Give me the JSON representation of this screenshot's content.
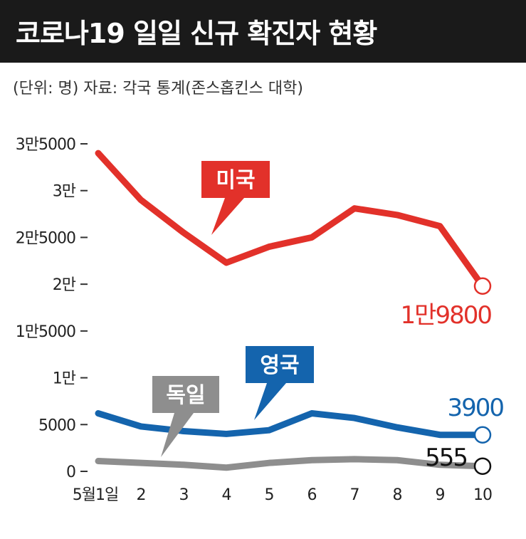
{
  "title": "코로나19 일일 신규 확진자 현황",
  "source": "(단위: 명) 자료: 각국 통계(존스홉킨스 대학)",
  "colors": {
    "title_bg": "#1a1a1a",
    "usa": "#e2312a",
    "uk": "#1464ad",
    "germany": "#8e8e8e"
  },
  "chart_data": {
    "type": "line",
    "x": [
      "5월1일",
      "2",
      "3",
      "4",
      "5",
      "6",
      "7",
      "8",
      "9",
      "10"
    ],
    "yticks": [
      {
        "value": 0,
        "label": "0"
      },
      {
        "value": 5000,
        "label": "5000"
      },
      {
        "value": 10000,
        "label": "1만"
      },
      {
        "value": 15000,
        "label": "1만5000"
      },
      {
        "value": 20000,
        "label": "2만"
      },
      {
        "value": 25000,
        "label": "2만5000"
      },
      {
        "value": 30000,
        "label": "3만"
      },
      {
        "value": 35000,
        "label": "3만5000"
      }
    ],
    "ylim": [
      0,
      35000
    ],
    "series": [
      {
        "name": "미국",
        "key": "usa",
        "values": [
          34000,
          29000,
          25500,
          22300,
          24000,
          25000,
          28100,
          27400,
          26200,
          19800
        ],
        "end_label": "1만9800"
      },
      {
        "name": "영국",
        "key": "uk",
        "values": [
          6200,
          4800,
          4300,
          4000,
          4400,
          6200,
          5700,
          4700,
          3900,
          3900
        ],
        "end_label": "3900"
      },
      {
        "name": "독일",
        "key": "germany",
        "values": [
          1100,
          900,
          700,
          400,
          900,
          1200,
          1300,
          1200,
          700,
          555
        ],
        "end_label": "555"
      }
    ]
  }
}
